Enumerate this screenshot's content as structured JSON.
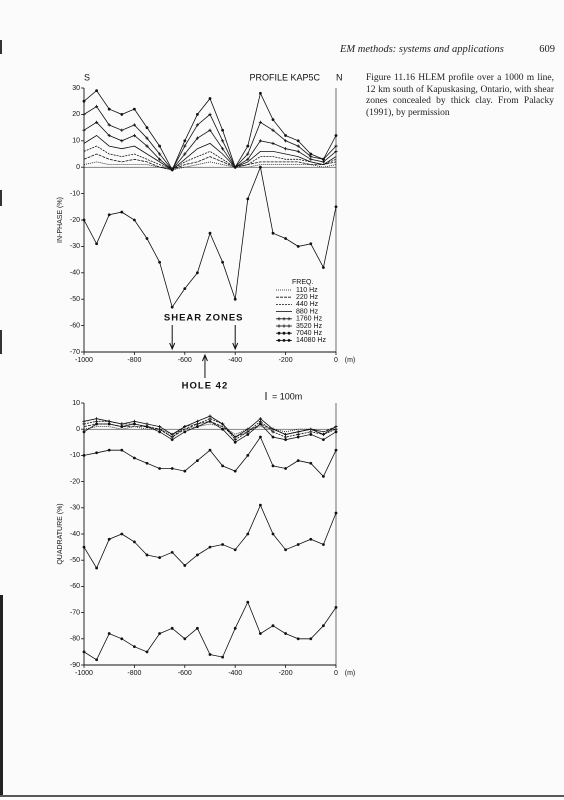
{
  "header": {
    "running_title": "EM methods: systems and applications",
    "page_number": "609"
  },
  "caption": "Figure 11.16 HLEM profile over a 1000 m line, 12 km south of Kapuskasing, Ontario, with shear zones concealed by thick clay. From Palacky (1991), by permission",
  "chart_data": [
    {
      "type": "line",
      "title": "PROFILE KAP5C",
      "left_label": "S",
      "right_label": "N",
      "ylabel": "IN-PHASE (%)",
      "xlabel": "(m)",
      "color": "#111",
      "xlim": [
        -1000,
        0
      ],
      "xticks": [
        -1000,
        -800,
        -600,
        -400,
        -200,
        0
      ],
      "ylim": [
        -70,
        30
      ],
      "yticks": [
        -70,
        -60,
        -50,
        -40,
        -30,
        -20,
        -10,
        0,
        10,
        20,
        30
      ],
      "legend": "lower right",
      "legend_title": "FREQ.",
      "annotations": [
        "SHEAR ZONES",
        "HOLE 42",
        "= 100m"
      ],
      "x": [
        -1000,
        -950,
        -900,
        -850,
        -800,
        -750,
        -700,
        -650,
        -600,
        -550,
        -500,
        -450,
        -400,
        -350,
        -300,
        -250,
        -200,
        -150,
        -100,
        -50,
        0
      ],
      "series": [
        {
          "name": "110 Hz",
          "marker": "none",
          "values": [
            1,
            2,
            1,
            1,
            1,
            1,
            0,
            -1,
            0,
            1,
            2,
            1,
            0,
            0,
            1,
            1,
            1,
            1,
            1,
            0,
            1
          ]
        },
        {
          "name": "220 Hz",
          "marker": "none",
          "values": [
            3,
            5,
            3,
            2,
            3,
            2,
            0,
            -1,
            1,
            2,
            4,
            2,
            0,
            1,
            2,
            2,
            2,
            2,
            1,
            1,
            2
          ]
        },
        {
          "name": "440 Hz",
          "marker": "none",
          "values": [
            6,
            8,
            5,
            4,
            5,
            3,
            1,
            -1,
            2,
            4,
            6,
            3,
            0,
            1,
            4,
            4,
            3,
            3,
            2,
            1,
            3
          ]
        },
        {
          "name": "880 Hz",
          "marker": "none",
          "values": [
            9,
            12,
            8,
            7,
            8,
            5,
            2,
            -1,
            3,
            7,
            9,
            5,
            0,
            2,
            6,
            6,
            5,
            4,
            2,
            1,
            4
          ]
        },
        {
          "name": "1760 Hz",
          "marker": "cross",
          "values": [
            14,
            17,
            12,
            10,
            12,
            8,
            3,
            -1,
            5,
            11,
            14,
            7,
            0,
            3,
            10,
            9,
            7,
            6,
            3,
            2,
            6
          ]
        },
        {
          "name": "3520 Hz",
          "marker": "cross",
          "values": [
            20,
            23,
            16,
            14,
            16,
            11,
            5,
            -1,
            8,
            16,
            20,
            10,
            0,
            5,
            17,
            14,
            10,
            8,
            4,
            3,
            8
          ]
        },
        {
          "name": "7040 Hz",
          "marker": "dot",
          "values": [
            25,
            29,
            22,
            20,
            22,
            15,
            8,
            -1,
            10,
            20,
            26,
            14,
            0,
            8,
            28,
            18,
            12,
            10,
            5,
            3,
            12
          ]
        },
        {
          "name": "14080 Hz",
          "marker": "dot",
          "values": [
            -20,
            -29,
            -18,
            -17,
            -20,
            -27,
            -36,
            -53,
            -46,
            -40,
            -25,
            -36,
            -50,
            -12,
            0,
            -25,
            -27,
            -30,
            -29,
            -38,
            -15
          ]
        }
      ]
    },
    {
      "type": "line",
      "ylabel": "QUADRATURE (%)",
      "xlabel": "(m)",
      "color": "#111",
      "xlim": [
        -1000,
        0
      ],
      "xticks": [
        -1000,
        -800,
        -600,
        -400,
        -200,
        0
      ],
      "ylim": [
        -90,
        10
      ],
      "yticks": [
        -90,
        -80,
        -70,
        -60,
        -50,
        -40,
        -30,
        -20,
        -10,
        0,
        10
      ],
      "x": [
        -1000,
        -950,
        -900,
        -850,
        -800,
        -750,
        -700,
        -650,
        -600,
        -550,
        -500,
        -450,
        -400,
        -350,
        -300,
        -250,
        -200,
        -150,
        -100,
        -50,
        0
      ],
      "series": [
        {
          "marker": "none",
          "values": [
            0,
            1,
            1,
            0,
            1,
            0,
            0,
            -2,
            0,
            1,
            2,
            1,
            -2,
            0,
            1,
            0,
            -1,
            0,
            0,
            -1,
            0
          ]
        },
        {
          "marker": "none",
          "values": [
            1,
            2,
            2,
            1,
            1,
            1,
            0,
            -3,
            0,
            2,
            3,
            1,
            -3,
            -1,
            2,
            0,
            -2,
            -1,
            0,
            -1,
            1
          ]
        },
        {
          "marker": "cross",
          "values": [
            2,
            3,
            3,
            2,
            2,
            1,
            0,
            -3,
            1,
            2,
            4,
            2,
            -4,
            -1,
            3,
            -1,
            -3,
            -2,
            -1,
            -2,
            0
          ]
        },
        {
          "marker": "cross",
          "values": [
            3,
            4,
            3,
            2,
            3,
            2,
            1,
            -2,
            1,
            3,
            5,
            2,
            -3,
            0,
            4,
            0,
            -2,
            -1,
            0,
            -2,
            1
          ]
        },
        {
          "marker": "dot",
          "values": [
            -1,
            2,
            2,
            1,
            2,
            1,
            -1,
            -4,
            -1,
            1,
            3,
            0,
            -5,
            -2,
            2,
            -3,
            -4,
            -3,
            -2,
            -4,
            -1
          ]
        },
        {
          "marker": "dot",
          "values": [
            -10,
            -9,
            -8,
            -8,
            -11,
            -13,
            -15,
            -15,
            -16,
            -12,
            -8,
            -14,
            -16,
            -10,
            -3,
            -14,
            -15,
            -12,
            -13,
            -18,
            -8
          ]
        },
        {
          "marker": "dot",
          "values": [
            -45,
            -53,
            -42,
            -40,
            -43,
            -48,
            -49,
            -47,
            -52,
            -48,
            -45,
            -44,
            -46,
            -40,
            -29,
            -40,
            -46,
            -44,
            -42,
            -44,
            -32
          ]
        },
        {
          "marker": "dot",
          "values": [
            -85,
            -88,
            -78,
            -80,
            -83,
            -85,
            -78,
            -76,
            -80,
            -76,
            -86,
            -87,
            -76,
            -66,
            -78,
            -75,
            -78,
            -80,
            -80,
            -75,
            -68
          ]
        }
      ]
    }
  ]
}
